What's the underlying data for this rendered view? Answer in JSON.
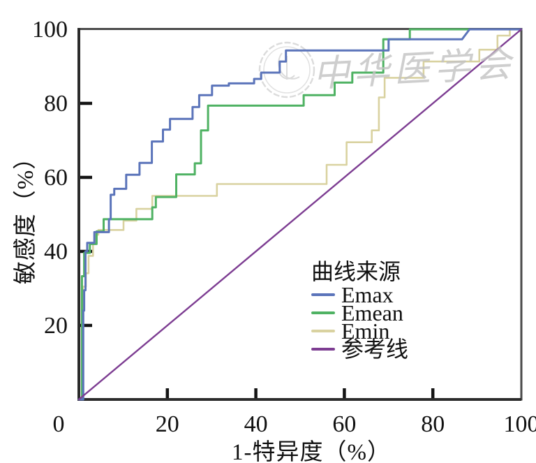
{
  "axes": {
    "y_label": "敏感度（%）",
    "x_label": "1-特异度（%）"
  },
  "legend": {
    "title": "曲线来源",
    "items": [
      {
        "label": "Emax",
        "color": "#5b74ba"
      },
      {
        "label": "Emean",
        "color": "#4fb263"
      },
      {
        "label": "Emin",
        "color": "#d9d2a0"
      },
      {
        "label": "参考线",
        "color": "#7d3d92"
      }
    ]
  },
  "watermark": {
    "text": "中华医学会"
  },
  "colors": {
    "frame": "#4a4a4a",
    "axis": "#2b2b2b",
    "tick": "#141414",
    "text": "#111111",
    "watermark": "#c3c3c3"
  },
  "chart_data": {
    "type": "line",
    "subtype": "roc_step_curves",
    "title": "",
    "xlabel": "1-特异度（%）",
    "ylabel": "敏感度（%）",
    "xlim": [
      0,
      100
    ],
    "ylim": [
      0,
      100
    ],
    "grid": false,
    "legend_title": "曲线来源",
    "legend_position": "lower right",
    "x_tick_labels": [
      0,
      20,
      40,
      60,
      80,
      100
    ],
    "y_tick_labels": [
      20,
      40,
      60,
      80,
      100
    ],
    "x_tick_marks": [
      20,
      40,
      60,
      80
    ],
    "y_tick_marks": [
      20,
      40,
      60,
      80
    ],
    "series": [
      {
        "name": "Emin",
        "color": "#d9d2a0",
        "width": 2.6,
        "points": [
          [
            0,
            0
          ],
          [
            0.9,
            0
          ],
          [
            0.9,
            30.5
          ],
          [
            1.6,
            30.5
          ],
          [
            1.6,
            34.1
          ],
          [
            2.2,
            34.1
          ],
          [
            2.2,
            38.8
          ],
          [
            3.2,
            38.8
          ],
          [
            3.2,
            42
          ],
          [
            3.7,
            42
          ],
          [
            3.7,
            44.5
          ],
          [
            4.4,
            44.5
          ],
          [
            4.4,
            45.8
          ],
          [
            10.1,
            45.8
          ],
          [
            10.1,
            48.3
          ],
          [
            13,
            48.3
          ],
          [
            13,
            51.5
          ],
          [
            16.6,
            51.5
          ],
          [
            16.6,
            55
          ],
          [
            31.2,
            55
          ],
          [
            31.2,
            58.2
          ],
          [
            56,
            58.2
          ],
          [
            56,
            63.4
          ],
          [
            60.5,
            63.4
          ],
          [
            60.5,
            69.5
          ],
          [
            66.2,
            69.5
          ],
          [
            66.2,
            72.7
          ],
          [
            67.8,
            72.7
          ],
          [
            67.8,
            81.6
          ],
          [
            69.1,
            81.6
          ],
          [
            69.1,
            86.9
          ],
          [
            77.9,
            86.9
          ],
          [
            77.9,
            91.3
          ],
          [
            90.5,
            91.3
          ],
          [
            90.5,
            94.5
          ],
          [
            94.6,
            94.5
          ],
          [
            94.6,
            98.3
          ],
          [
            97.4,
            98.3
          ],
          [
            97.4,
            100
          ],
          [
            100,
            100
          ]
        ]
      },
      {
        "name": "Emean",
        "color": "#4fb263",
        "width": 3,
        "points": [
          [
            0,
            0
          ],
          [
            0.7,
            0
          ],
          [
            0.7,
            33.3
          ],
          [
            1.2,
            33.3
          ],
          [
            1.2,
            39.6
          ],
          [
            2.5,
            39.6
          ],
          [
            2.5,
            42
          ],
          [
            4,
            42
          ],
          [
            4,
            45.4
          ],
          [
            5.6,
            45.4
          ],
          [
            5.6,
            48.7
          ],
          [
            16.6,
            48.7
          ],
          [
            16.6,
            51.9
          ],
          [
            17.4,
            51.9
          ],
          [
            17.4,
            54.7
          ],
          [
            22,
            54.7
          ],
          [
            22,
            60.8
          ],
          [
            26.2,
            60.8
          ],
          [
            26.2,
            63.8
          ],
          [
            27.6,
            63.8
          ],
          [
            27.6,
            72.7
          ],
          [
            29.2,
            72.7
          ],
          [
            29.2,
            79.4
          ],
          [
            50.8,
            79.4
          ],
          [
            50.8,
            82.2
          ],
          [
            57.8,
            82.2
          ],
          [
            57.8,
            85.6
          ],
          [
            61.8,
            85.6
          ],
          [
            61.8,
            88.3
          ],
          [
            68.8,
            88.3
          ],
          [
            68.8,
            97.3
          ],
          [
            74.8,
            97.3
          ],
          [
            74.8,
            100
          ],
          [
            100,
            100
          ]
        ]
      },
      {
        "name": "Emax",
        "color": "#5b74ba",
        "width": 3,
        "points": [
          [
            0,
            0
          ],
          [
            1,
            0
          ],
          [
            1,
            24
          ],
          [
            1.2,
            24
          ],
          [
            1.2,
            29.5
          ],
          [
            1.5,
            29.5
          ],
          [
            1.5,
            40
          ],
          [
            1.9,
            40
          ],
          [
            1.9,
            42.3
          ],
          [
            3.5,
            42.3
          ],
          [
            3.5,
            45.2
          ],
          [
            6.8,
            45.2
          ],
          [
            6.8,
            48.7
          ],
          [
            7.2,
            48.7
          ],
          [
            7.2,
            55.3
          ],
          [
            8,
            55.3
          ],
          [
            8,
            56.9
          ],
          [
            10.7,
            56.9
          ],
          [
            10.7,
            60.7
          ],
          [
            13.7,
            60.7
          ],
          [
            13.7,
            63.9
          ],
          [
            16.5,
            63.9
          ],
          [
            16.5,
            69.7
          ],
          [
            19,
            69.7
          ],
          [
            19,
            72.9
          ],
          [
            20.6,
            72.9
          ],
          [
            20.6,
            75.8
          ],
          [
            25.7,
            75.8
          ],
          [
            25.7,
            79
          ],
          [
            27.2,
            79
          ],
          [
            27.2,
            82.2
          ],
          [
            30.1,
            82.2
          ],
          [
            30.1,
            84.8
          ],
          [
            33.9,
            84.8
          ],
          [
            33.9,
            85.4
          ],
          [
            39.6,
            85.4
          ],
          [
            39.6,
            86.6
          ],
          [
            41.2,
            86.6
          ],
          [
            41.2,
            88.3
          ],
          [
            45.4,
            88.3
          ],
          [
            45.4,
            91.3
          ],
          [
            46.8,
            91.3
          ],
          [
            46.8,
            94.3
          ],
          [
            70,
            94.3
          ],
          [
            70,
            97.3
          ],
          [
            86.6,
            97.3
          ],
          [
            88.3,
            100
          ],
          [
            100,
            100
          ]
        ]
      },
      {
        "name": "参考线",
        "color": "#7d3d92",
        "width": 2.4,
        "points": [
          [
            0,
            0
          ],
          [
            100,
            100
          ]
        ]
      }
    ]
  }
}
